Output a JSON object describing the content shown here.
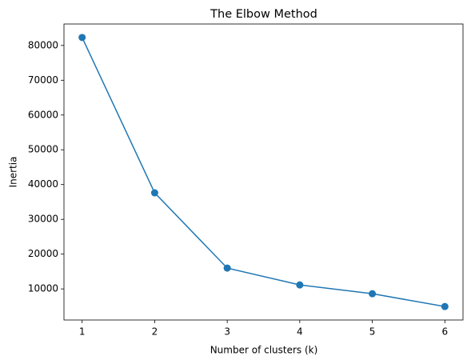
{
  "chart_data": {
    "type": "line",
    "title": "The Elbow Method",
    "x_label": "Number of clusters (k)",
    "y_label": "Inertia",
    "x": [
      1,
      2,
      3,
      4,
      5,
      6
    ],
    "series": [
      {
        "name": "Inertia",
        "color": "#1f77b4",
        "values": [
          82300,
          37630,
          15990,
          11150,
          8620,
          4930
        ]
      }
    ],
    "xlim": [
      0.75,
      6.25
    ],
    "xticks": [
      1,
      2,
      3,
      4,
      5,
      6
    ],
    "ylim": [
      1062,
      86168
    ],
    "yticks": [
      10000,
      20000,
      30000,
      40000,
      50000,
      60000,
      70000,
      80000
    ],
    "markers": true,
    "grid": false
  }
}
